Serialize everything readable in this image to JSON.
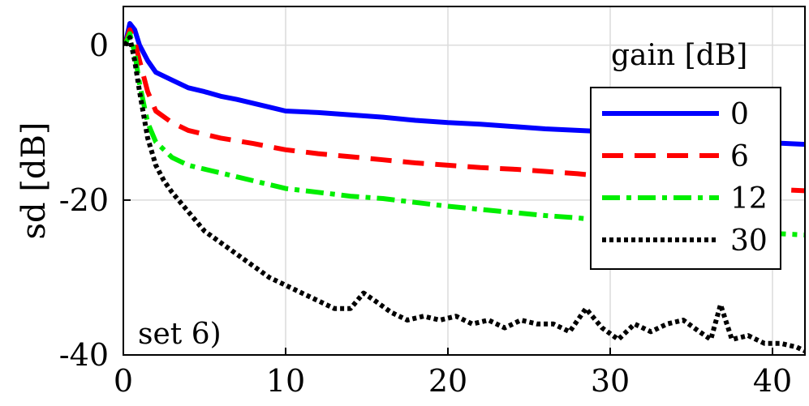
{
  "chart_data": {
    "type": "line",
    "ylabel": "sd [dB]",
    "xlim": [
      0,
      42
    ],
    "ylim": [
      -40,
      5
    ],
    "xticks": [
      0,
      10,
      20,
      30,
      40
    ],
    "yticks": [
      -40,
      -20,
      0
    ],
    "grid": true,
    "annotation": "set 6)",
    "legend": {
      "title": "gain [dB]",
      "placement": "right"
    },
    "series": [
      {
        "name": "0",
        "color": "#0000ff",
        "style": "solid",
        "x": [
          0.1,
          0.4,
          0.7,
          1.0,
          1.5,
          2.0,
          3.0,
          4.0,
          5.0,
          6.0,
          7.0,
          8.0,
          9.0,
          10.0,
          12.0,
          14.0,
          16.0,
          18.0,
          20.0,
          22.0,
          24.0,
          26.0,
          28.0,
          30.0,
          32.0,
          34.0,
          36.0,
          38.0,
          40.0,
          42.0
        ],
        "values": [
          0.0,
          2.8,
          2.0,
          0.0,
          -2.0,
          -3.5,
          -4.5,
          -5.5,
          -6.0,
          -6.6,
          -7.0,
          -7.5,
          -8.0,
          -8.5,
          -8.7,
          -9.0,
          -9.3,
          -9.7,
          -10.0,
          -10.2,
          -10.5,
          -10.8,
          -11.0,
          -11.2,
          -11.5,
          -11.8,
          -12.0,
          -12.3,
          -12.6,
          -12.8
        ]
      },
      {
        "name": "6",
        "color": "#ff0000",
        "style": "dashed",
        "x": [
          0.1,
          0.4,
          0.7,
          1.0,
          1.5,
          2.0,
          3.0,
          4.0,
          5.0,
          6.0,
          8.0,
          10.0,
          12.0,
          14.0,
          16.0,
          18.0,
          20.0,
          22.0,
          24.0,
          26.0,
          28.0,
          30.0,
          32.0,
          34.0,
          36.0,
          38.0,
          40.0,
          42.0
        ],
        "values": [
          0.0,
          2.0,
          0.5,
          -2.0,
          -6.0,
          -8.5,
          -10.0,
          -11.0,
          -11.5,
          -12.0,
          -12.7,
          -13.5,
          -14.0,
          -14.4,
          -14.8,
          -15.2,
          -15.5,
          -15.8,
          -16.0,
          -16.3,
          -16.6,
          -17.0,
          -17.4,
          -17.7,
          -18.0,
          -18.3,
          -18.6,
          -18.8
        ]
      },
      {
        "name": "12",
        "color": "#00ee00",
        "style": "dashdot",
        "x": [
          0.1,
          0.4,
          0.7,
          1.0,
          1.5,
          2.0,
          3.0,
          4.0,
          5.0,
          6.0,
          8.0,
          10.0,
          12.0,
          14.0,
          16.0,
          18.0,
          20.0,
          22.0,
          24.0,
          26.0,
          28.0,
          30.0,
          32.0,
          34.0,
          36.0,
          38.0,
          40.0,
          42.0
        ],
        "values": [
          0.0,
          1.5,
          -1.0,
          -5.0,
          -10.0,
          -12.5,
          -14.5,
          -15.5,
          -16.0,
          -16.5,
          -17.5,
          -18.5,
          -19.0,
          -19.5,
          -19.8,
          -20.3,
          -20.8,
          -21.2,
          -21.6,
          -22.0,
          -22.3,
          -22.7,
          -23.0,
          -23.3,
          -23.7,
          -24.0,
          -24.3,
          -24.5
        ]
      },
      {
        "name": "30",
        "color": "#000000",
        "style": "dotted",
        "x": [
          0.1,
          0.4,
          0.7,
          1.0,
          1.5,
          2.0,
          2.5,
          3.0,
          4.0,
          5.0,
          6.0,
          7.0,
          8.0,
          9.0,
          10.0,
          11.0,
          12.0,
          13.0,
          14.0,
          14.8,
          15.5,
          16.5,
          17.5,
          18.5,
          19.5,
          20.5,
          21.5,
          22.5,
          23.5,
          24.5,
          25.5,
          26.5,
          27.5,
          28.5,
          29.5,
          30.5,
          31.5,
          32.5,
          33.5,
          34.5,
          35.5,
          36.2,
          36.8,
          37.5,
          38.5,
          39.5,
          40.5,
          41.5,
          42.0
        ],
        "values": [
          0.0,
          1.0,
          -2.0,
          -6.0,
          -12.0,
          -15.5,
          -17.5,
          -19.0,
          -21.5,
          -24.0,
          -25.5,
          -27.0,
          -28.5,
          -30.0,
          -31.0,
          -32.0,
          -33.0,
          -34.0,
          -34.0,
          -32.0,
          -33.0,
          -34.5,
          -35.5,
          -35.0,
          -35.5,
          -35.0,
          -36.0,
          -35.5,
          -36.5,
          -35.5,
          -36.0,
          -36.0,
          -37.0,
          -34.0,
          -36.5,
          -38.0,
          -36.0,
          -37.0,
          -36.0,
          -35.5,
          -37.0,
          -38.0,
          -33.5,
          -38.0,
          -37.5,
          -38.5,
          -38.5,
          -39.0,
          -39.5
        ]
      }
    ]
  }
}
